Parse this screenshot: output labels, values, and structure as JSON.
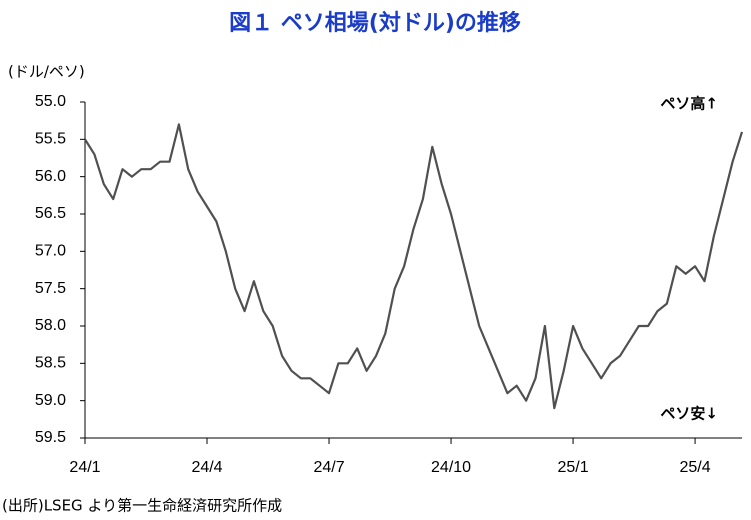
{
  "chart_data": {
    "type": "line",
    "title": "図１ ペソ相場(対ドル)の推移",
    "y_label": "(ドル/ペソ)",
    "annotations": [
      "ペソ高↑",
      "ペソ安↓"
    ],
    "source": "(出所)LSEG より第一生命経済研究所作成",
    "categories": [
      "24/1",
      null,
      null,
      null,
      null,
      null,
      null,
      null,
      null,
      null,
      null,
      null,
      null,
      "24/4",
      null,
      null,
      null,
      null,
      null,
      null,
      null,
      null,
      null,
      null,
      null,
      null,
      "24/7",
      null,
      null,
      null,
      null,
      null,
      null,
      null,
      null,
      null,
      null,
      null,
      null,
      "24/10",
      null,
      null,
      null,
      null,
      null,
      null,
      null,
      null,
      null,
      null,
      null,
      null,
      "25/1",
      null,
      null,
      null,
      null,
      null,
      null,
      null,
      null,
      null,
      null,
      null,
      null,
      "25/4",
      null,
      null,
      null,
      null,
      null
    ],
    "values": [
      55.5,
      55.7,
      56.1,
      56.3,
      55.9,
      56.0,
      55.9,
      55.9,
      55.8,
      55.8,
      55.3,
      55.9,
      56.2,
      56.4,
      56.6,
      57.0,
      57.5,
      57.8,
      57.4,
      57.8,
      58.0,
      58.4,
      58.6,
      58.7,
      58.7,
      58.8,
      58.9,
      58.5,
      58.5,
      58.3,
      58.6,
      58.4,
      58.1,
      57.5,
      57.2,
      56.7,
      56.3,
      55.6,
      56.1,
      56.5,
      57.0,
      57.5,
      58.0,
      58.3,
      58.6,
      58.9,
      58.8,
      59.0,
      58.7,
      58.0,
      59.1,
      58.6,
      58.0,
      58.3,
      58.5,
      58.7,
      58.5,
      58.4,
      58.2,
      58.0,
      58.0,
      57.8,
      57.7,
      57.2,
      57.3,
      57.2,
      57.4,
      56.8,
      56.3,
      55.8,
      55.4
    ],
    "color": "#505050",
    "ylim": [
      59.5,
      55.0
    ],
    "inverted_y": true,
    "yticks": [
      {
        "value": 55.0,
        "label": "55.0"
      },
      {
        "value": 55.5,
        "label": "55.5"
      },
      {
        "value": 56.0,
        "label": "56.0"
      },
      {
        "value": 56.5,
        "label": "56.5"
      },
      {
        "value": 57.0,
        "label": "57.0"
      },
      {
        "value": 57.5,
        "label": "57.5"
      },
      {
        "value": 58.0,
        "label": "58.0"
      },
      {
        "value": 58.5,
        "label": "58.5"
      },
      {
        "value": 59.0,
        "label": "59.0"
      },
      {
        "value": 59.5,
        "label": "59.5"
      }
    ]
  }
}
